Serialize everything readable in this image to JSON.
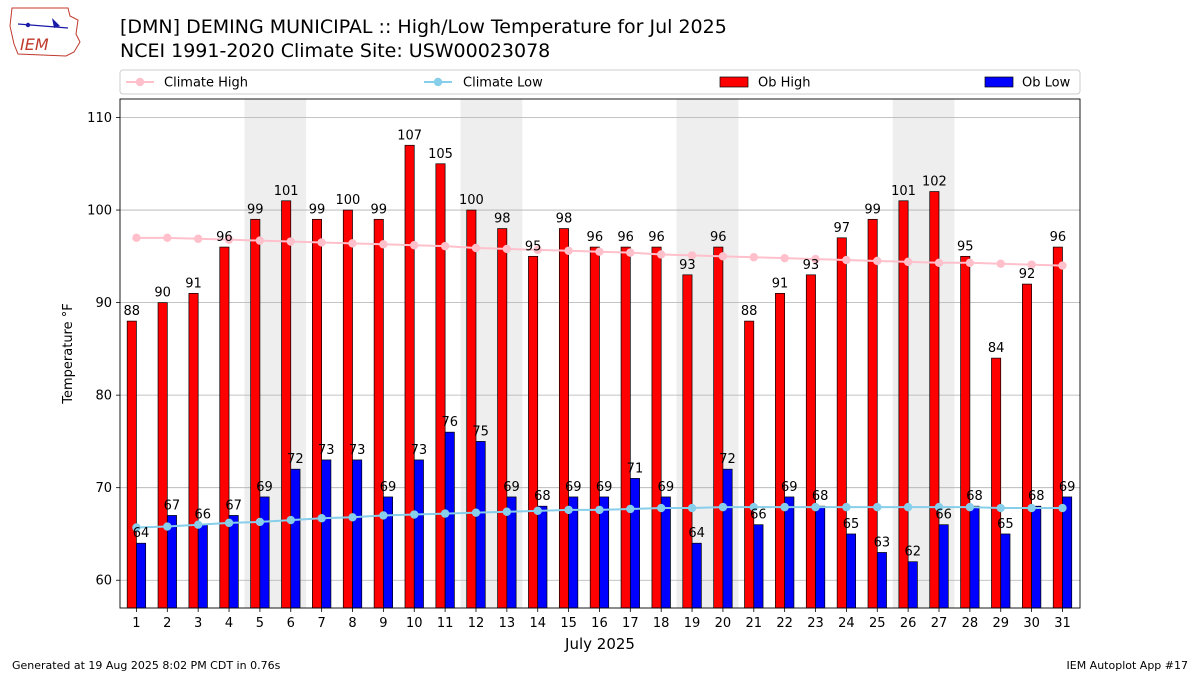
{
  "header": {
    "title_line1": "[DMN] DEMING MUNICIPAL :: High/Low Temperature for Jul 2025",
    "title_line2": "NCEI 1991-2020 Climate Site: USW00023078",
    "logo_text": "IEM"
  },
  "footer": {
    "left": "Generated at 19 Aug 2025 8:02 PM CDT in 0.76s",
    "right": "IEM Autoplot App #17"
  },
  "colors": {
    "ob_high": "#ff0000",
    "ob_low": "#0000ff",
    "climate_high": "#ffc0cb",
    "climate_low": "#87ceeb",
    "weekend_band": "#eeeeee",
    "grid": "#b0b0b0"
  },
  "chart_data": {
    "type": "bar",
    "xlabel": "July 2025",
    "ylabel": "Temperature °F",
    "ylim": [
      57,
      112
    ],
    "yticks": [
      60,
      70,
      80,
      90,
      100,
      110
    ],
    "grid": "horizontal",
    "legend_position": "top",
    "categories": [
      "1",
      "2",
      "3",
      "4",
      "5",
      "6",
      "7",
      "8",
      "9",
      "10",
      "11",
      "12",
      "13",
      "14",
      "15",
      "16",
      "17",
      "18",
      "19",
      "20",
      "21",
      "22",
      "23",
      "24",
      "25",
      "26",
      "27",
      "28",
      "29",
      "30",
      "31"
    ],
    "weekend_bands": [
      [
        "5",
        "6"
      ],
      [
        "12",
        "13"
      ],
      [
        "19",
        "20"
      ],
      [
        "26",
        "27"
      ]
    ],
    "series": [
      {
        "name": "Ob High",
        "kind": "bar",
        "color": "#ff0000",
        "values": [
          88,
          90,
          91,
          96,
          99,
          101,
          99,
          100,
          99,
          107,
          105,
          100,
          98,
          95,
          98,
          96,
          96,
          96,
          93,
          96,
          88,
          91,
          93,
          97,
          99,
          101,
          102,
          95,
          84,
          92,
          96
        ]
      },
      {
        "name": "Ob Low",
        "kind": "bar",
        "color": "#0000ff",
        "values": [
          64,
          67,
          66,
          67,
          69,
          72,
          73,
          73,
          69,
          73,
          76,
          75,
          69,
          68,
          69,
          69,
          71,
          69,
          64,
          72,
          66,
          69,
          68,
          65,
          63,
          62,
          66,
          68,
          65,
          68,
          69
        ]
      },
      {
        "name": "Climate High",
        "kind": "line",
        "color": "#ffc0cb",
        "values": [
          97.0,
          97.0,
          96.9,
          96.8,
          96.7,
          96.6,
          96.5,
          96.4,
          96.3,
          96.2,
          96.1,
          95.9,
          95.8,
          95.7,
          95.6,
          95.5,
          95.4,
          95.2,
          95.1,
          95.0,
          94.9,
          94.8,
          94.7,
          94.6,
          94.5,
          94.4,
          94.3,
          94.3,
          94.2,
          94.1,
          94.0
        ]
      },
      {
        "name": "Climate Low",
        "kind": "line",
        "color": "#87ceeb",
        "values": [
          65.7,
          65.8,
          66.0,
          66.2,
          66.3,
          66.5,
          66.7,
          66.8,
          67.0,
          67.1,
          67.2,
          67.3,
          67.4,
          67.5,
          67.6,
          67.6,
          67.7,
          67.8,
          67.8,
          67.9,
          67.9,
          67.9,
          67.9,
          67.9,
          67.9,
          67.9,
          67.9,
          67.9,
          67.8,
          67.8,
          67.8
        ]
      }
    ]
  }
}
